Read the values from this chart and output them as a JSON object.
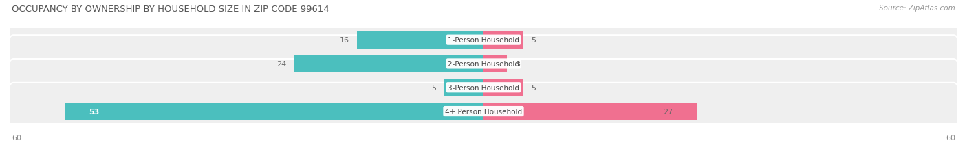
{
  "title": "OCCUPANCY BY OWNERSHIP BY HOUSEHOLD SIZE IN ZIP CODE 99614",
  "source": "Source: ZipAtlas.com",
  "categories": [
    "1-Person Household",
    "2-Person Household",
    "3-Person Household",
    "4+ Person Household"
  ],
  "owner_values": [
    16,
    24,
    5,
    53
  ],
  "renter_values": [
    5,
    3,
    5,
    27
  ],
  "owner_color": "#4BBFBE",
  "renter_color": "#F07090",
  "row_bg_color": "#EFEFEF",
  "x_max": 60,
  "title_fontsize": 9.5,
  "source_fontsize": 7.5,
  "label_fontsize": 8,
  "value_fontsize": 8,
  "category_fontsize": 7.5
}
